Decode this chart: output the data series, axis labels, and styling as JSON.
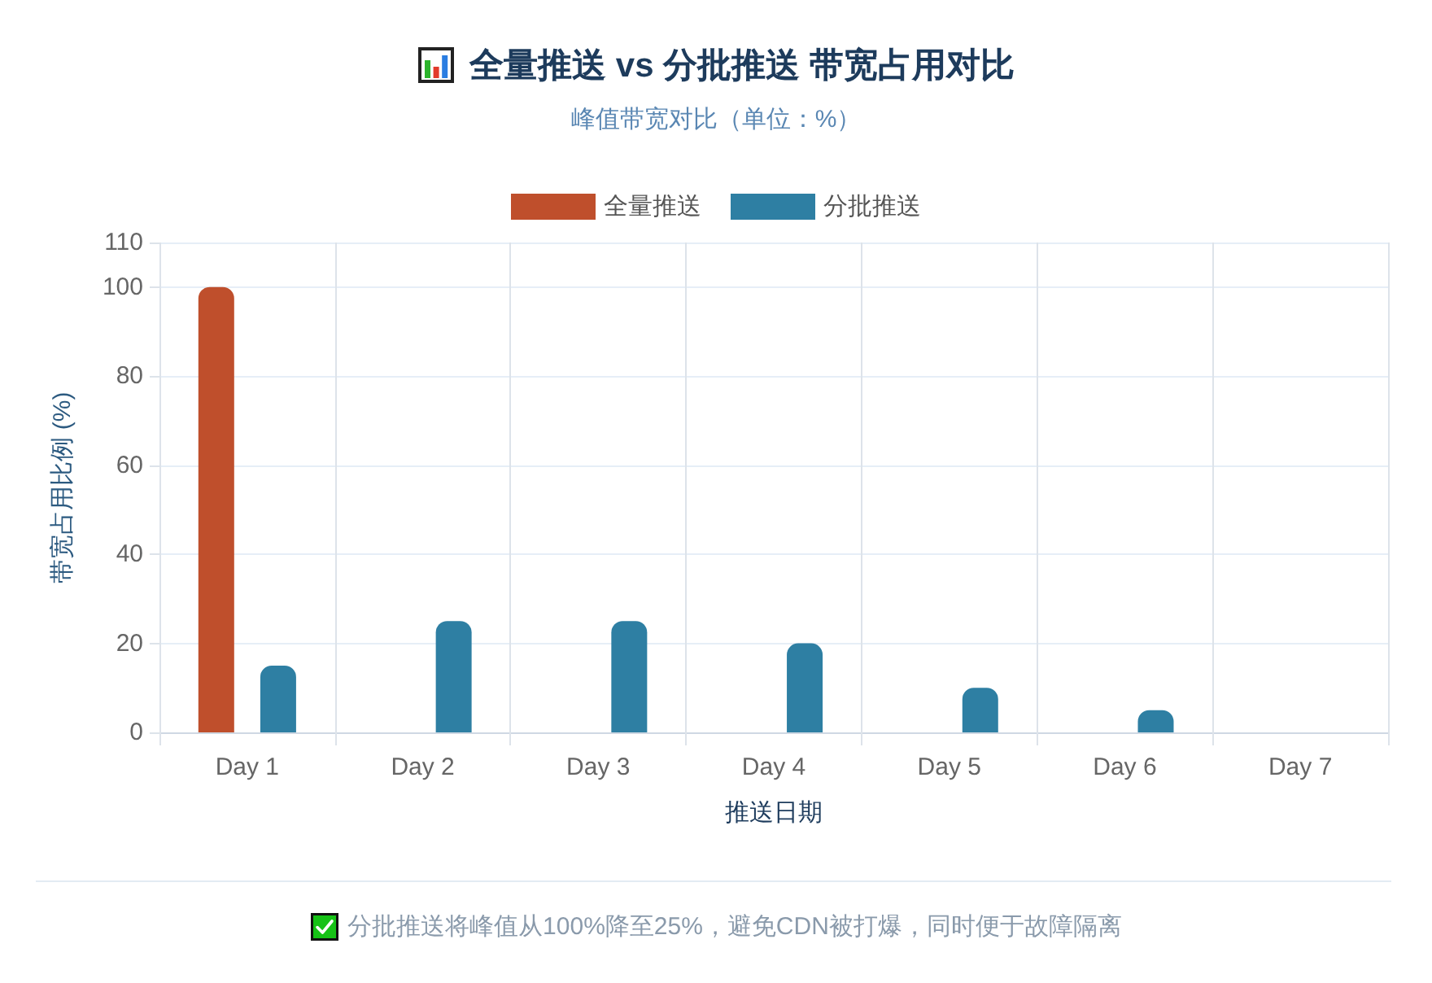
{
  "chart_data": {
    "type": "bar",
    "title": "全量推送 vs 分批推送 带宽占用对比",
    "subtitle": "峰值带宽对比（单位：%）",
    "xlabel": "推送日期",
    "ylabel": "带宽占用比例 (%)",
    "categories": [
      "Day 1",
      "Day 2",
      "Day 3",
      "Day 4",
      "Day 5",
      "Day 6",
      "Day 7"
    ],
    "series": [
      {
        "name": "全量推送",
        "color": "#bf4f2c",
        "values": [
          100,
          null,
          null,
          null,
          null,
          null,
          null
        ]
      },
      {
        "name": "分批推送",
        "color": "#2e7fa3",
        "values": [
          15,
          25,
          25,
          20,
          10,
          5,
          null
        ]
      }
    ],
    "ylim": [
      0,
      110
    ],
    "yticks": [
      0,
      20,
      40,
      60,
      80,
      100,
      110
    ],
    "grid": true,
    "legend": "top",
    "annotations": [
      "分批推送将峰值从100%降至25%，避免CDN被打爆，同时便于故障隔离"
    ]
  }
}
